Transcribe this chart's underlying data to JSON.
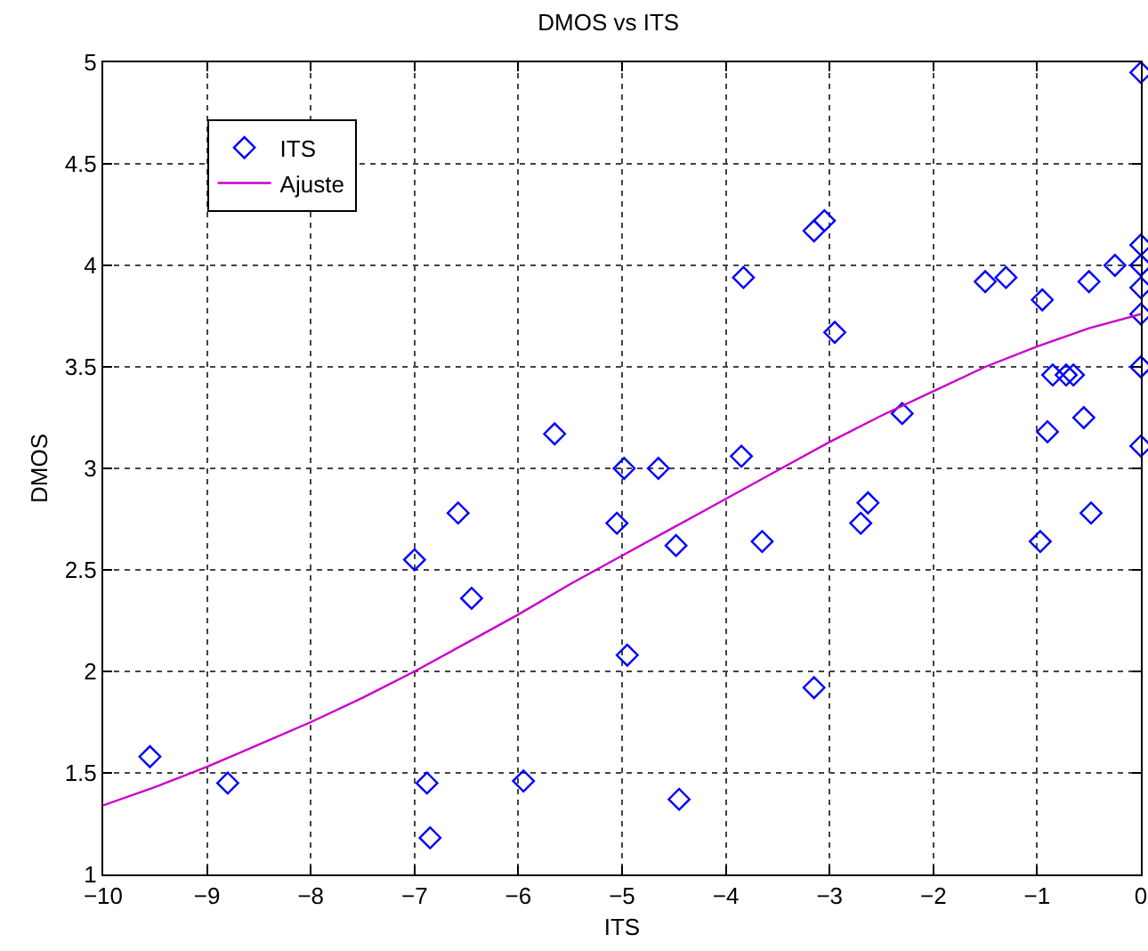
{
  "chart_data": {
    "type": "scatter",
    "title": "DMOS vs ITS",
    "xlabel": "ITS",
    "ylabel": "DMOS",
    "xlim": [
      -10,
      0
    ],
    "xticks": [
      -10,
      -9,
      -8,
      -7,
      -6,
      -5,
      -4,
      -3,
      -2,
      -1,
      0
    ],
    "ylim": [
      1,
      5
    ],
    "yticks": [
      1,
      1.5,
      2,
      2.5,
      3,
      3.5,
      4,
      4.5,
      5
    ],
    "grid": true,
    "legend": "top left",
    "series": [
      {
        "name": "ITS",
        "marker": "diamond",
        "color": "#0000ff",
        "x": [
          -9.55,
          -8.8,
          -7.0,
          -6.88,
          -6.85,
          -6.58,
          -6.45,
          -5.95,
          -5.65,
          -5.05,
          -4.98,
          -4.95,
          -4.65,
          -4.48,
          -4.45,
          -3.85,
          -3.83,
          -3.65,
          -3.15,
          -3.05,
          -3.15,
          -2.95,
          -2.7,
          -2.63,
          -2.3,
          -1.5,
          -1.3,
          -0.97,
          -0.95,
          -0.9,
          -0.85,
          -0.72,
          -0.65,
          -0.55,
          -0.5,
          -0.48,
          -0.25,
          0,
          0,
          0,
          0,
          0,
          0,
          0
        ],
        "values": [
          1.58,
          1.45,
          2.55,
          1.45,
          1.18,
          2.78,
          2.36,
          1.46,
          3.17,
          2.73,
          3.0,
          2.08,
          3.0,
          2.62,
          1.37,
          3.06,
          3.94,
          2.64,
          4.17,
          4.22,
          1.92,
          3.67,
          2.73,
          2.83,
          3.27,
          3.92,
          3.94,
          2.64,
          3.83,
          3.18,
          3.46,
          3.46,
          3.46,
          3.25,
          3.92,
          2.78,
          4.0,
          4.95,
          4.1,
          4.0,
          3.89,
          3.76,
          3.5,
          3.11
        ]
      },
      {
        "name": "Ajuste",
        "type": "line",
        "marker": "none",
        "color": "#cc00cc",
        "x": [
          -10,
          -9.5,
          -9,
          -8.5,
          -8,
          -7.5,
          -7,
          -6.5,
          -6,
          -5.5,
          -5,
          -4.5,
          -4,
          -3.5,
          -3,
          -2.5,
          -2,
          -1.5,
          -1,
          -0.5,
          0
        ],
        "values": [
          1.34,
          1.43,
          1.53,
          1.64,
          1.75,
          1.87,
          2.0,
          2.14,
          2.28,
          2.43,
          2.57,
          2.71,
          2.85,
          2.99,
          3.13,
          3.26,
          3.38,
          3.5,
          3.6,
          3.69,
          3.76
        ]
      }
    ]
  }
}
